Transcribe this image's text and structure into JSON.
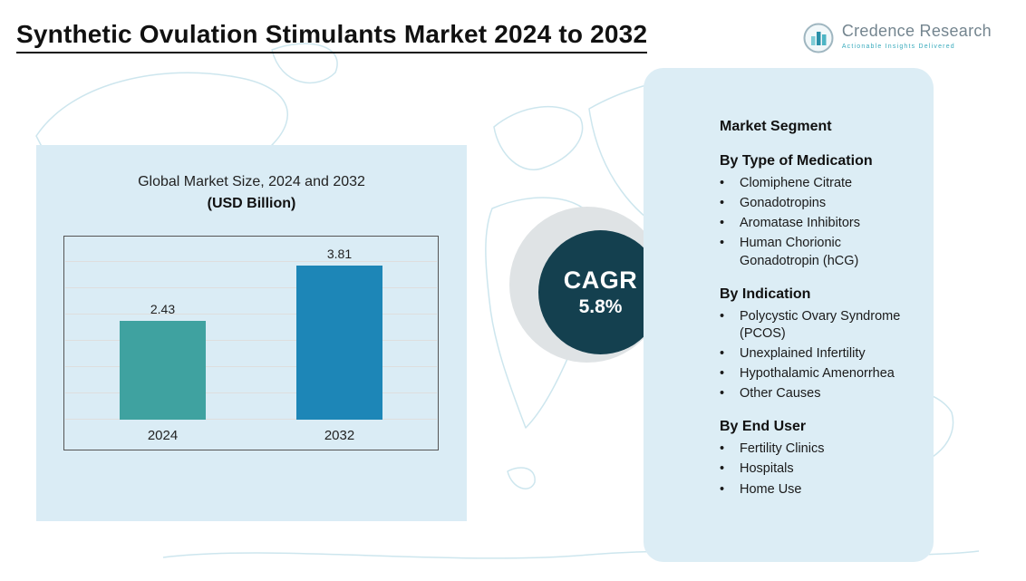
{
  "title": "Synthetic Ovulation Stimulants Market 2024 to 2032",
  "logo": {
    "brand": "Credence Research",
    "tagline": "Actionable Insights Delivered",
    "icon": "bar-chart-logo-icon"
  },
  "chart_panel": {
    "title_line1": "Global Market Size, 2024 and 2032",
    "title_line2": "(USD Billion)"
  },
  "chart_data": {
    "type": "bar",
    "title": "Global Market Size, 2024 and 2032 (USD Billion)",
    "categories": [
      "2024",
      "2032"
    ],
    "values": [
      2.43,
      3.81
    ],
    "value_labels": [
      "2.43",
      "3.81"
    ],
    "xlabel": "",
    "ylabel": "",
    "ylim": [
      0,
      4.5
    ],
    "grid": true,
    "legend": "none",
    "bar_colors": [
      "#3fa2a0",
      "#1d86b7"
    ]
  },
  "cagr": {
    "label": "CAGR",
    "value": "5.8%"
  },
  "segments": {
    "heading": "Market Segment",
    "groups": [
      {
        "title": "By Type of Medication",
        "items": [
          "Clomiphene Citrate",
          "Gonadotropins",
          "Aromatase Inhibitors",
          "Human Chorionic Gonadotropin (hCG)"
        ]
      },
      {
        "title": "By Indication",
        "items": [
          "Polycystic Ovary Syndrome (PCOS)",
          "Unexplained Infertility",
          "Hypothalamic Amenorrhea",
          "Other Causes"
        ]
      },
      {
        "title": "By End User",
        "items": [
          "Fertility Clinics",
          "Hospitals",
          "Home Use"
        ]
      }
    ]
  },
  "colors": {
    "bar_2024": "#3fa2a0",
    "bar_2032": "#1d86b7",
    "panel_background": "#dcedf5",
    "cagr_circle": "#14404f",
    "map_outline": "#cde6ee",
    "brand_text": "#74858f",
    "brand_accent": "#3aabbd"
  }
}
